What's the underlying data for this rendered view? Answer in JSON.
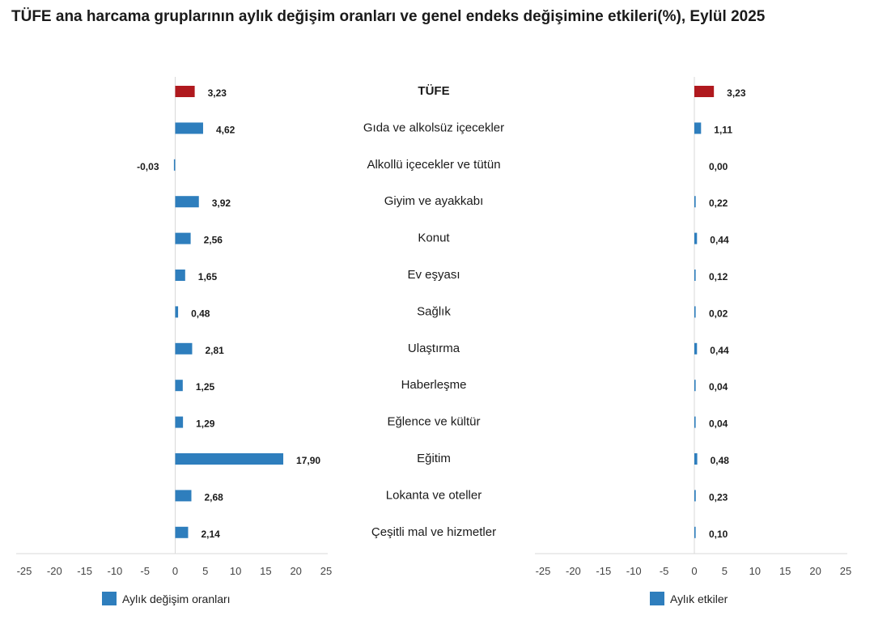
{
  "title": "TÜFE ana harcama gruplarının aylık değişim oranları ve genel endeks değişimine etkileri(%), Eylül 2025",
  "colors": {
    "highlight": "#b0191e",
    "bar": "#2e7ebd"
  },
  "chart_data": {
    "type": "bar",
    "orientation": "horizontal",
    "categories": [
      "TÜFE",
      "Gıda ve alkolsüz içecekler",
      "Alkollü içecekler ve tütün",
      "Giyim ve ayakkabı",
      "Konut",
      "Ev eşyası",
      "Sağlık",
      "Ulaştırma",
      "Haberleşme",
      "Eğlence ve kültür",
      "Eğitim",
      "Lokanta ve oteller",
      "Çeşitli mal ve hizmetler"
    ],
    "series": [
      {
        "name": "Aylık değişim oranları",
        "values": [
          3.23,
          4.62,
          -0.03,
          3.92,
          2.56,
          1.65,
          0.48,
          2.81,
          1.25,
          1.29,
          17.9,
          2.68,
          2.14
        ],
        "labels": [
          "3,23",
          "4,62",
          "-0,03",
          "3,92",
          "2,56",
          "1,65",
          "0,48",
          "2,81",
          "1,25",
          "1,29",
          "17,90",
          "2,68",
          "2,14"
        ]
      },
      {
        "name": "Aylık etkiler",
        "values": [
          3.23,
          1.11,
          0.0,
          0.22,
          0.44,
          0.12,
          0.02,
          0.44,
          0.04,
          0.04,
          0.48,
          0.23,
          0.1
        ],
        "labels": [
          "3,23",
          "1,11",
          "0,00",
          "0,22",
          "0,44",
          "0,12",
          "0,02",
          "0,44",
          "0,04",
          "0,04",
          "0,48",
          "0,23",
          "0,10"
        ]
      }
    ],
    "highlight_category": "TÜFE",
    "xlim": [
      -25,
      25
    ],
    "xticks": [
      -25,
      -20,
      -15,
      -10,
      -5,
      0,
      5,
      10,
      15,
      20,
      25
    ],
    "grid": false,
    "legend": "bottom-left"
  }
}
